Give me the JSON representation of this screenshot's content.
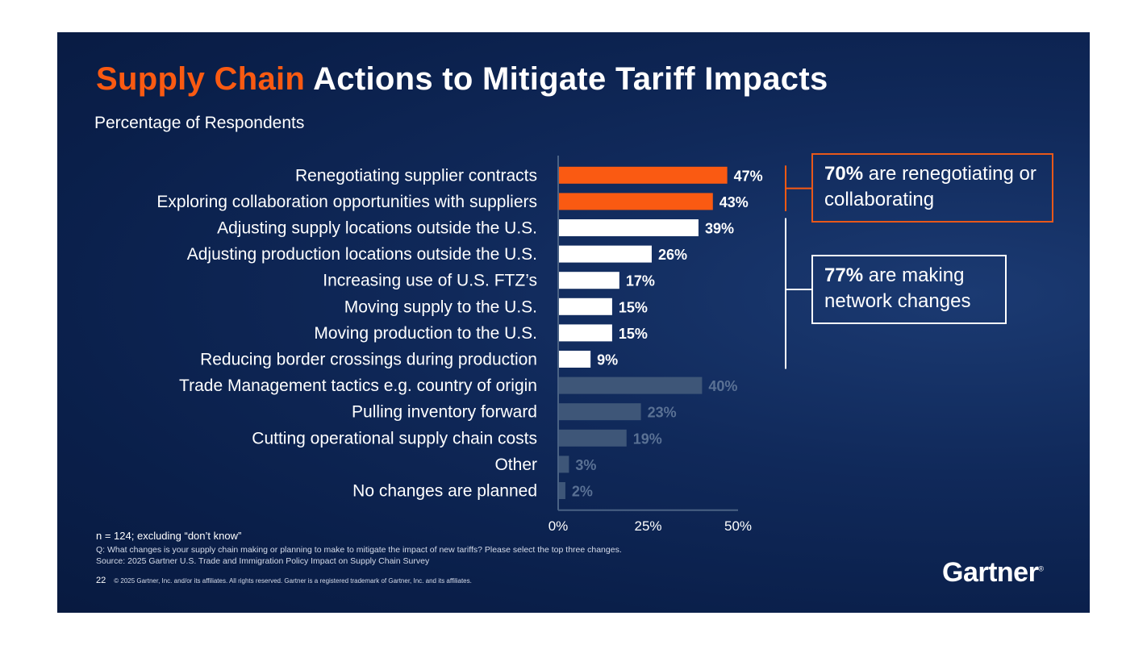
{
  "title": {
    "accent": "Supply Chain",
    "rest": " Actions to Mitigate Tariff Impacts"
  },
  "subtitle": "Percentage of Respondents",
  "colors": {
    "orange": "#fa5a12",
    "white": "#ffffff",
    "muted": "#3e5678",
    "muted_label": "#5a7194",
    "axis": "#4a6284"
  },
  "chart_data": {
    "type": "bar",
    "orientation": "horizontal",
    "xlim": [
      0,
      50
    ],
    "ticks": [
      0,
      25,
      50
    ],
    "tick_labels": [
      "0%",
      "25%",
      "50%"
    ],
    "categories": [
      "Renegotiating supplier contracts",
      "Exploring collaboration opportunities with suppliers",
      "Adjusting supply locations outside the U.S.",
      "Adjusting production locations outside the U.S.",
      "Increasing use of U.S. FTZ’s",
      "Moving supply to the U.S.",
      "Moving production to the U.S.",
      "Reducing border crossings during production",
      "Trade Management tactics e.g. country of origin",
      "Pulling inventory forward",
      "Cutting operational supply chain costs",
      "Other",
      "No changes are planned"
    ],
    "values": [
      47,
      43,
      39,
      26,
      17,
      15,
      15,
      9,
      40,
      23,
      19,
      3,
      2
    ],
    "labels": [
      "47%",
      "43%",
      "39%",
      "26%",
      "17%",
      "15%",
      "15%",
      "9%",
      "40%",
      "23%",
      "19%",
      "3%",
      "2%"
    ],
    "groups": [
      "orange",
      "orange",
      "white",
      "white",
      "white",
      "white",
      "white",
      "white",
      "muted",
      "muted",
      "muted",
      "muted",
      "muted"
    ]
  },
  "callouts": {
    "collab": {
      "bold": "70%",
      "text": " are renegotiating or collaborating"
    },
    "network": {
      "bold": "77%",
      "text": " are making network changes"
    }
  },
  "footer": {
    "n": "n = 124; excluding “don’t know”",
    "question": "Q: What changes is your supply chain making or planning to make to mitigate the impact of new tariffs?  Please select the top three changes.",
    "source": "Source: 2025 Gartner U.S. Trade and Immigration Policy Impact on Supply Chain Survey",
    "page": "22",
    "copyright": "© 2025 Gartner, Inc. and/or its affiliates. All rights reserved. Gartner is a registered trademark of Gartner, Inc. and its affiliates."
  },
  "logo": {
    "text": "Gartner",
    "mark": "®"
  }
}
